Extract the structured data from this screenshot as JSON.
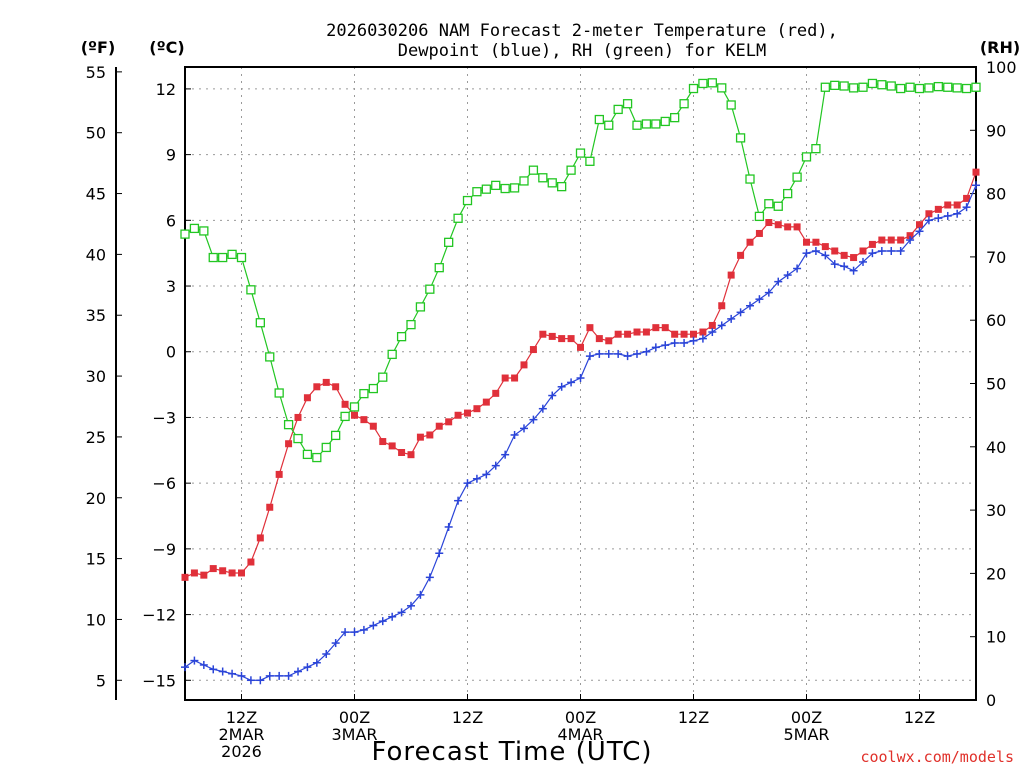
{
  "chart_data": {
    "type": "line",
    "title": "2026030206 NAM Forecast 2-meter Temperature (red),",
    "subtitle": "Dewpoint (blue), RH (green) for KELM",
    "xlabel": "Forecast Time (UTC)",
    "credit": "coolwx.com/models",
    "credit_color": "#e0302a",
    "units": {
      "fahrenheit": "(ºF)",
      "celsius": "(ºC)",
      "rh": "(RH)"
    },
    "x_range_hours": [
      0,
      84
    ],
    "celsius_range": [
      -15.9,
      13.0
    ],
    "fahrenheit_ticks": [
      5,
      10,
      15,
      20,
      25,
      30,
      35,
      40,
      45,
      50,
      55
    ],
    "fahrenheit_tick_labels": [
      "5",
      "10",
      "15",
      "20",
      "25",
      "30",
      "35",
      "40",
      "45",
      "50",
      "55"
    ],
    "celsius_ticks": [
      -15,
      -12,
      -9,
      -6,
      -3,
      0,
      3,
      6,
      9,
      12
    ],
    "celsius_tick_labels": [
      "−15",
      "−12",
      "−9",
      "−6",
      "−3",
      "0",
      "3",
      "6",
      "9",
      "12"
    ],
    "rh_ticks": [
      0,
      10,
      20,
      30,
      40,
      50,
      60,
      70,
      80,
      90,
      100
    ],
    "rh_tick_labels": [
      "0",
      "10",
      "20",
      "30",
      "40",
      "50",
      "60",
      "70",
      "80",
      "90",
      "100"
    ],
    "x_ticks": [
      {
        "hour": 6,
        "lines": [
          "12Z",
          "2MAR",
          "2026"
        ]
      },
      {
        "hour": 18,
        "lines": [
          "00Z",
          "3MAR"
        ]
      },
      {
        "hour": 30,
        "lines": [
          "12Z"
        ]
      },
      {
        "hour": 42,
        "lines": [
          "00Z",
          "4MAR"
        ]
      },
      {
        "hour": 54,
        "lines": [
          "12Z"
        ]
      },
      {
        "hour": 66,
        "lines": [
          "00Z",
          "5MAR"
        ]
      },
      {
        "hour": 78,
        "lines": [
          "12Z"
        ]
      }
    ],
    "series": [
      {
        "name": "2-meter Temperature",
        "color": "#e0303a",
        "marker": "filled-square",
        "axis": "celsius",
        "x": [
          0,
          1,
          2,
          3,
          4,
          5,
          6,
          7,
          8,
          9,
          10,
          11,
          12,
          13,
          14,
          15,
          16,
          17,
          18,
          19,
          20,
          21,
          22,
          23,
          24,
          25,
          26,
          27,
          28,
          29,
          30,
          31,
          32,
          33,
          34,
          35,
          36,
          37,
          38,
          39,
          40,
          41,
          42,
          43,
          44,
          45,
          46,
          47,
          48,
          49,
          50,
          51,
          52,
          53,
          54,
          55,
          56,
          57,
          58,
          59,
          60,
          61,
          62,
          63,
          64,
          65,
          66,
          67,
          68,
          69,
          70,
          71,
          72,
          73,
          74,
          75,
          76,
          77,
          78,
          79,
          80,
          81,
          82,
          83,
          84
        ],
        "values": [
          -10.3,
          -10.1,
          -10.2,
          -9.9,
          -10.0,
          -10.1,
          -10.1,
          -9.6,
          -8.5,
          -7.1,
          -5.6,
          -4.2,
          -3.0,
          -2.1,
          -1.6,
          -1.4,
          -1.6,
          -2.4,
          -2.9,
          -3.1,
          -3.4,
          -4.1,
          -4.3,
          -4.6,
          -4.7,
          -3.9,
          -3.8,
          -3.4,
          -3.2,
          -2.9,
          -2.8,
          -2.6,
          -2.3,
          -1.9,
          -1.2,
          -1.2,
          -0.6,
          0.1,
          0.8,
          0.7,
          0.6,
          0.6,
          0.2,
          1.1,
          0.6,
          0.5,
          0.8,
          0.8,
          0.9,
          0.9,
          1.1,
          1.1,
          0.8,
          0.8,
          0.8,
          0.9,
          1.2,
          2.1,
          3.5,
          4.4,
          5.0,
          5.4,
          5.9,
          5.8,
          5.7,
          5.7,
          5.0,
          5.0,
          4.8,
          4.6,
          4.4,
          4.3,
          4.6,
          4.9,
          5.1,
          5.1,
          5.1,
          5.3,
          5.8,
          6.3,
          6.5,
          6.7,
          6.7,
          7.0,
          8.2
        ]
      },
      {
        "name": "Dewpoint",
        "color": "#2a44d8",
        "marker": "plus",
        "axis": "celsius",
        "x": [
          0,
          1,
          2,
          3,
          4,
          5,
          6,
          7,
          8,
          9,
          10,
          11,
          12,
          13,
          14,
          15,
          16,
          17,
          18,
          19,
          20,
          21,
          22,
          23,
          24,
          25,
          26,
          27,
          28,
          29,
          30,
          31,
          32,
          33,
          34,
          35,
          36,
          37,
          38,
          39,
          40,
          41,
          42,
          43,
          44,
          45,
          46,
          47,
          48,
          49,
          50,
          51,
          52,
          53,
          54,
          55,
          56,
          57,
          58,
          59,
          60,
          61,
          62,
          63,
          64,
          65,
          66,
          67,
          68,
          69,
          70,
          71,
          72,
          73,
          74,
          75,
          76,
          77,
          78,
          79,
          80,
          81,
          82,
          83,
          84
        ],
        "values": [
          -14.4,
          -14.1,
          -14.3,
          -14.5,
          -14.6,
          -14.7,
          -14.8,
          -15.0,
          -15.0,
          -14.8,
          -14.8,
          -14.8,
          -14.6,
          -14.4,
          -14.2,
          -13.8,
          -13.3,
          -12.8,
          -12.8,
          -12.7,
          -12.5,
          -12.3,
          -12.1,
          -11.9,
          -11.6,
          -11.1,
          -10.3,
          -9.2,
          -8.0,
          -6.8,
          -6.0,
          -5.8,
          -5.6,
          -5.2,
          -4.7,
          -3.8,
          -3.5,
          -3.1,
          -2.6,
          -2.0,
          -1.6,
          -1.4,
          -1.2,
          -0.2,
          -0.1,
          -0.1,
          -0.1,
          -0.2,
          -0.1,
          0.0,
          0.2,
          0.3,
          0.4,
          0.4,
          0.5,
          0.6,
          0.9,
          1.2,
          1.5,
          1.8,
          2.1,
          2.4,
          2.7,
          3.2,
          3.5,
          3.8,
          4.5,
          4.6,
          4.4,
          4.0,
          3.9,
          3.7,
          4.1,
          4.5,
          4.6,
          4.6,
          4.6,
          5.1,
          5.5,
          6.0,
          6.1,
          6.2,
          6.3,
          6.6,
          7.6
        ]
      },
      {
        "name": "RH",
        "color": "#22c622",
        "marker": "hollow-square",
        "axis": "rh",
        "x": [
          0,
          1,
          2,
          3,
          4,
          5,
          6,
          7,
          8,
          9,
          10,
          11,
          12,
          13,
          14,
          15,
          16,
          17,
          18,
          19,
          20,
          21,
          22,
          23,
          24,
          25,
          26,
          27,
          28,
          29,
          30,
          31,
          32,
          33,
          34,
          35,
          36,
          37,
          38,
          39,
          40,
          41,
          42,
          43,
          44,
          45,
          46,
          47,
          48,
          49,
          50,
          51,
          52,
          53,
          54,
          55,
          56,
          57,
          58,
          59,
          60,
          61,
          62,
          63,
          64,
          65,
          66,
          67,
          68,
          69,
          70,
          71,
          72,
          73,
          74,
          75,
          76,
          77,
          78,
          79,
          80,
          81,
          82,
          83,
          84
        ],
        "values": [
          73.6,
          74.5,
          74.1,
          69.9,
          69.9,
          70.4,
          69.9,
          64.8,
          59.6,
          54.2,
          48.5,
          43.5,
          41.3,
          38.8,
          38.3,
          39.9,
          41.8,
          44.8,
          46.3,
          48.4,
          49.2,
          51.0,
          54.6,
          57.4,
          59.3,
          62.1,
          64.9,
          68.3,
          72.3,
          76.1,
          78.9,
          80.3,
          80.7,
          81.3,
          80.8,
          80.9,
          82.0,
          83.7,
          82.5,
          81.7,
          81.1,
          83.7,
          86.4,
          85.1,
          91.7,
          90.8,
          93.3,
          94.2,
          90.8,
          91.0,
          91.0,
          91.4,
          92.0,
          94.2,
          96.6,
          97.4,
          97.5,
          96.7,
          94.0,
          88.8,
          82.3,
          76.4,
          78.4,
          78.0,
          80.0,
          82.6,
          85.8,
          87.1,
          96.8,
          97.1,
          97.0,
          96.7,
          96.8,
          97.4,
          97.2,
          97.0,
          96.6,
          96.8,
          96.6,
          96.7,
          96.9,
          96.8,
          96.7,
          96.6,
          96.8
        ]
      }
    ]
  }
}
